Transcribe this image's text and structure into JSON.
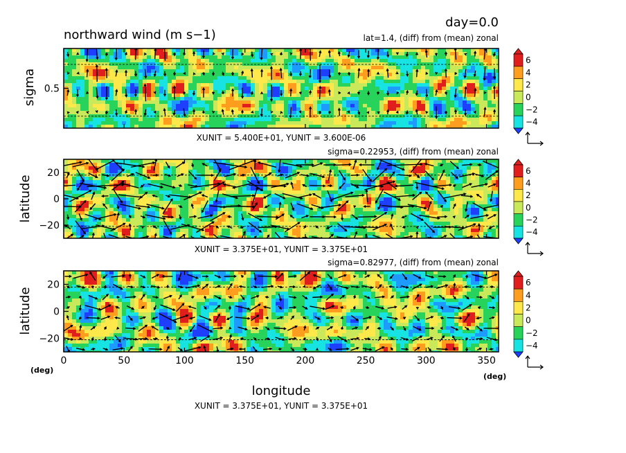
{
  "header": {
    "day_label": "day=0.0",
    "title": "northward wind (m s−1)"
  },
  "colors": {
    "levels": [
      "#1f3fff",
      "#1e9bff",
      "#17e3e3",
      "#27d35a",
      "#c9e85a",
      "#ffe84a",
      "#ff9d1e",
      "#e11e1e"
    ],
    "grid": "#000000"
  },
  "chart_data": [
    {
      "type": "heatmap",
      "name": "top",
      "subtitle": "lat=1.4, (diff) from (mean) zonal",
      "ylabel": "sigma",
      "yticks": [
        "0.5"
      ],
      "ytick_values": [
        0.5
      ],
      "ylim": [
        0.0,
        1.0
      ],
      "xlim": [
        0,
        360
      ],
      "unit_line": "XUNIT = 5.400E+01, YUNIT = 3.600E-06",
      "seed": 11,
      "vector_style": "vertical"
    },
    {
      "type": "heatmap",
      "name": "middle",
      "subtitle": "sigma=0.22953, (diff) from (mean) zonal",
      "ylabel": "latitude",
      "yticks": [
        "20",
        "0",
        "−20"
      ],
      "ytick_values": [
        20,
        0,
        -20
      ],
      "ylim": [
        -30,
        30
      ],
      "xlim": [
        0,
        360
      ],
      "unit_line": "XUNIT = 3.375E+01, YUNIT = 3.375E+01",
      "seed": 23,
      "vector_style": "large"
    },
    {
      "type": "heatmap",
      "name": "bottom",
      "subtitle": "sigma=0.82977, (diff) from (mean) zonal",
      "ylabel": "latitude",
      "yticks": [
        "20",
        "0",
        "−20"
      ],
      "ytick_values": [
        20,
        0,
        -20
      ],
      "ylim": [
        -30,
        30
      ],
      "xlim": [
        0,
        360
      ],
      "xlabel": "longitude",
      "xticks": [
        "0",
        "50",
        "100",
        "150",
        "200",
        "250",
        "300",
        "350"
      ],
      "xtick_values": [
        0,
        50,
        100,
        150,
        200,
        250,
        300,
        350
      ],
      "unit_line": "XUNIT = 3.375E+01, YUNIT = 3.375E+01",
      "seed": 37,
      "vector_style": "small"
    }
  ],
  "colorbar": {
    "labels": [
      "6",
      "4",
      "2",
      "0",
      "−2",
      "−4"
    ],
    "values": [
      6,
      4,
      2,
      0,
      -2,
      -4
    ]
  },
  "axis_units": {
    "left": "(deg)",
    "right": "(deg)"
  }
}
